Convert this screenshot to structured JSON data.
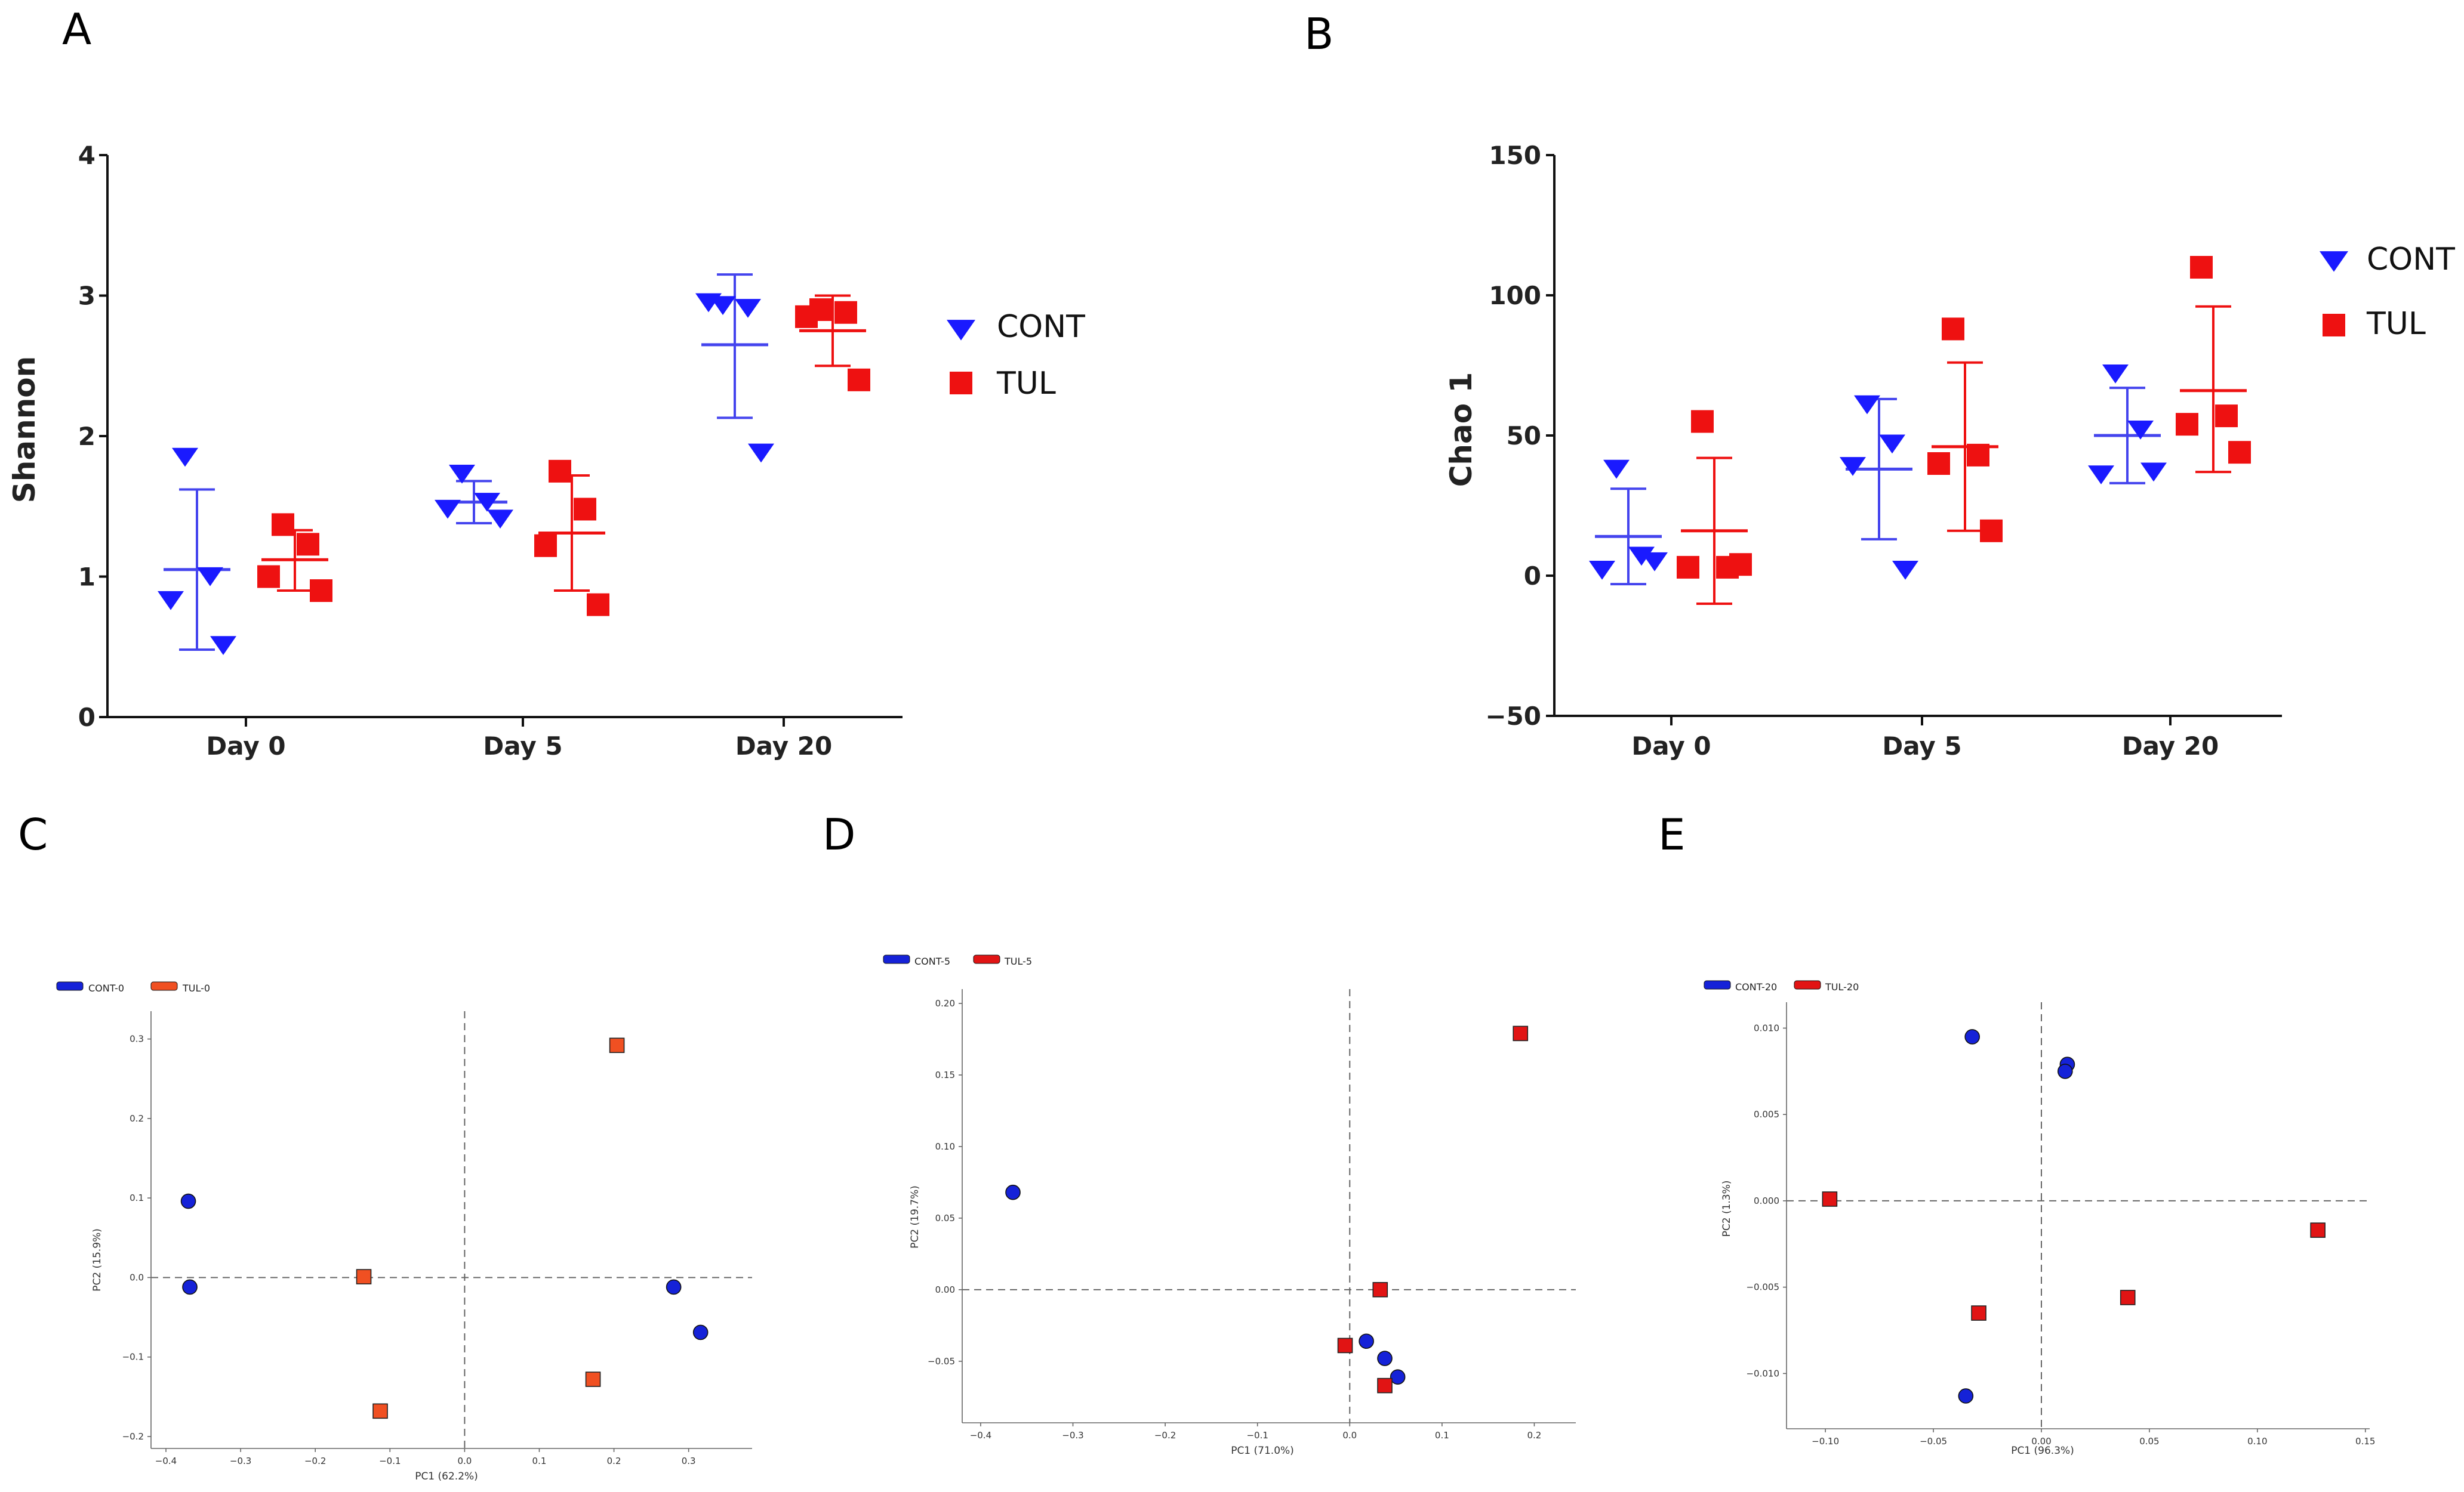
{
  "colors": {
    "cont": "#1a1aff",
    "cont_line": "#4444ee",
    "tul": "#ee1111",
    "tul_pcoa0": "#f05022",
    "pc_blue": "#1522d8",
    "pc_red": "#e11414"
  },
  "chart_data": [
    {
      "id": "A",
      "panel_label": "A",
      "type": "scatter",
      "ylabel": "Shannon",
      "categories": [
        "Day 0",
        "Day 5",
        "Day 20"
      ],
      "ylim": [
        0,
        4
      ],
      "yticks": [
        "0",
        "1",
        "2",
        "3",
        "4"
      ],
      "series": [
        {
          "name": "CONT",
          "marker": "triangle-down",
          "points": [
            [
              1.87,
              1.02,
              0.85,
              0.53
            ],
            [
              1.75,
              1.55,
              1.5,
              1.43
            ],
            [
              2.95,
              2.93,
              2.97,
              1.9
            ]
          ],
          "mean": [
            1.05,
            1.53,
            2.65
          ],
          "err_low": [
            0.48,
            1.38,
            2.13
          ],
          "err_high": [
            1.62,
            1.68,
            3.15
          ]
        },
        {
          "name": "TUL",
          "marker": "square",
          "points": [
            [
              1.37,
              1.23,
              1.0,
              0.9
            ],
            [
              1.75,
              1.48,
              1.22,
              0.8
            ],
            [
              2.9,
              2.88,
              2.85,
              2.4
            ]
          ],
          "mean": [
            1.12,
            1.31,
            2.75
          ],
          "err_low": [
            0.9,
            0.9,
            2.5
          ],
          "err_high": [
            1.33,
            1.72,
            3.0
          ]
        }
      ],
      "legend": [
        "CONT",
        "TUL"
      ]
    },
    {
      "id": "B",
      "panel_label": "B",
      "type": "scatter",
      "ylabel": "Chao 1",
      "categories": [
        "Day 0",
        "Day 5",
        "Day 20"
      ],
      "ylim": [
        -50,
        150
      ],
      "yticks": [
        "−50",
        "0",
        "50",
        "100",
        "150"
      ],
      "series": [
        {
          "name": "CONT",
          "marker": "triangle-down",
          "points": [
            [
              39,
              8,
              3,
              6
            ],
            [
              62,
              48,
              40,
              3
            ],
            [
              73,
              53,
              37,
              38
            ]
          ],
          "mean": [
            14,
            38,
            50
          ],
          "err_low": [
            -3,
            13,
            33
          ],
          "err_high": [
            31,
            63,
            67
          ]
        },
        {
          "name": "TUL",
          "marker": "square",
          "points": [
            [
              55,
              3,
              3,
              4
            ],
            [
              88,
              43,
              40,
              16
            ],
            [
              110,
              57,
              54,
              44
            ]
          ],
          "mean": [
            16,
            46,
            66
          ],
          "err_low": [
            -10,
            16,
            37
          ],
          "err_high": [
            42,
            76,
            96
          ]
        }
      ],
      "legend": [
        "CONT",
        "TUL"
      ]
    },
    {
      "id": "C",
      "panel_label": "C",
      "type": "scatter",
      "xlabel": "PC1 (62.2%)",
      "ylabel": "PC2 (15.9%)",
      "xlim": [
        -0.42,
        0.385
      ],
      "ylim": [
        -0.215,
        0.335
      ],
      "xticks": [
        -0.4,
        -0.3,
        -0.2,
        -0.1,
        0.0,
        0.1,
        0.2,
        0.3
      ],
      "xtick_labels": [
        "−0.4",
        "−0.3",
        "−0.2",
        "−0.1",
        "0.0",
        "0.1",
        "0.2",
        "0.3"
      ],
      "yticks": [
        -0.2,
        -0.1,
        0.0,
        0.1,
        0.2,
        0.3
      ],
      "ytick_labels": [
        "−0.2",
        "−0.1",
        "0.0",
        "0.1",
        "0.2",
        "0.3"
      ],
      "legend": [
        "CONT-0",
        "TUL-0"
      ],
      "series": [
        {
          "name": "CONT-0",
          "marker": "circle",
          "points": [
            [
              -0.37,
              0.096
            ],
            [
              -0.368,
              -0.012
            ],
            [
              0.28,
              -0.012
            ],
            [
              0.316,
              -0.069
            ]
          ]
        },
        {
          "name": "TUL-0",
          "marker": "square",
          "points": [
            [
              0.204,
              0.292
            ],
            [
              -0.135,
              0.001
            ],
            [
              -0.113,
              -0.168
            ],
            [
              0.172,
              -0.128
            ]
          ]
        }
      ]
    },
    {
      "id": "D",
      "panel_label": "D",
      "type": "scatter",
      "xlabel": "PC1 (71.0%)",
      "ylabel": "PC2 (19.7%)",
      "xlim": [
        -0.42,
        0.245
      ],
      "ylim": [
        -0.093,
        0.21
      ],
      "xticks": [
        -0.4,
        -0.3,
        -0.2,
        -0.1,
        0.0,
        0.1,
        0.2
      ],
      "xtick_labels": [
        "−0.4",
        "−0.3",
        "−0.2",
        "−0.1",
        "0.0",
        "0.1",
        "0.2"
      ],
      "yticks": [
        -0.05,
        0.0,
        0.05,
        0.1,
        0.15,
        0.2
      ],
      "ytick_labels": [
        "−0.05",
        "0.00",
        "0.05",
        "0.10",
        "0.15",
        "0.20"
      ],
      "legend": [
        "CONT-5",
        "TUL-5"
      ],
      "series": [
        {
          "name": "CONT-5",
          "marker": "circle",
          "points": [
            [
              -0.365,
              0.068
            ],
            [
              0.018,
              -0.036
            ],
            [
              0.038,
              -0.048
            ],
            [
              0.052,
              -0.061
            ]
          ]
        },
        {
          "name": "TUL-5",
          "marker": "square",
          "points": [
            [
              0.185,
              0.179
            ],
            [
              0.033,
              0.0
            ],
            [
              -0.005,
              -0.039
            ],
            [
              0.038,
              -0.067
            ]
          ]
        }
      ]
    },
    {
      "id": "E",
      "panel_label": "E",
      "type": "scatter",
      "xlabel": "PC1 (96.3%)",
      "ylabel": "PC2 (1.3%)",
      "xlim": [
        -0.118,
        0.152
      ],
      "ylim": [
        -0.0132,
        0.0115
      ],
      "xticks": [
        -0.1,
        -0.05,
        0.0,
        0.05,
        0.1,
        0.15
      ],
      "xtick_labels": [
        "−0.10",
        "−0.05",
        "0.00",
        "0.05",
        "0.10",
        "0.15"
      ],
      "yticks": [
        -0.01,
        -0.005,
        0.0,
        0.005,
        0.01
      ],
      "ytick_labels": [
        "−0.010",
        "−0.005",
        "0.000",
        "0.005",
        "0.010"
      ],
      "legend": [
        "CONT-20",
        "TUL-20"
      ],
      "series": [
        {
          "name": "CONT-20",
          "marker": "circle",
          "points": [
            [
              -0.032,
              0.0095
            ],
            [
              0.012,
              0.0079
            ],
            [
              0.011,
              0.0075
            ],
            [
              -0.035,
              -0.0113
            ]
          ]
        },
        {
          "name": "TUL-20",
          "marker": "square",
          "points": [
            [
              -0.098,
              0.0001
            ],
            [
              0.128,
              -0.0017
            ],
            [
              0.04,
              -0.0056
            ],
            [
              -0.029,
              -0.0065
            ]
          ]
        }
      ]
    }
  ]
}
